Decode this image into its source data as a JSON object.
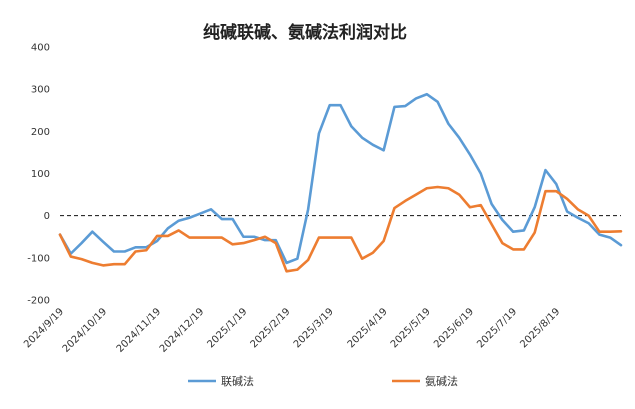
{
  "chart_data": {
    "type": "line",
    "title": "纯碱联碱、氨碱法利润对比",
    "xlabel": "",
    "ylabel": "",
    "ylim": [
      -200,
      400
    ],
    "yticks": [
      400,
      300,
      200,
      100,
      0,
      -100,
      -200
    ],
    "xticks": [
      "2024/9/19",
      "2024/10/19",
      "2024/11/19",
      "2024/12/19",
      "2025/1/19",
      "2025/2/19",
      "2025/3/19",
      "2025/4/19",
      "2025/5/19",
      "2025/6/19",
      "2025/7/19",
      "2025/8/19"
    ],
    "xtick_index": [
      0,
      4,
      9,
      13,
      17,
      21,
      25,
      30,
      34,
      38,
      42,
      46
    ],
    "zero_line": "dashed",
    "grid": false,
    "legend_position": "bottom",
    "series": [
      {
        "name": "联碱法",
        "color": "#5b9bd5",
        "values": [
          -45,
          -90,
          -65,
          -38,
          -62,
          -85,
          -85,
          -75,
          -75,
          -60,
          -30,
          -12,
          -5,
          5,
          15,
          -8,
          -8,
          -50,
          -50,
          -58,
          -58,
          -112,
          -102,
          15,
          195,
          262,
          262,
          212,
          185,
          168,
          155,
          258,
          260,
          278,
          288,
          270,
          218,
          185,
          145,
          100,
          28,
          -10,
          -38,
          -35,
          20,
          108,
          75,
          10,
          -5,
          -18,
          -45,
          -52,
          -70
        ]
      },
      {
        "name": "氨碱法",
        "color": "#ed7d31",
        "values": [
          -45,
          -97,
          -103,
          -112,
          -118,
          -115,
          -115,
          -85,
          -82,
          -48,
          -48,
          -35,
          -52,
          -52,
          -52,
          -52,
          -68,
          -65,
          -58,
          -50,
          -65,
          -132,
          -128,
          -105,
          -52,
          -52,
          -52,
          -52,
          -102,
          -88,
          -60,
          18,
          35,
          50,
          65,
          68,
          65,
          50,
          20,
          25,
          -20,
          -65,
          -80,
          -80,
          -40,
          58,
          58,
          40,
          15,
          0,
          -38,
          -38,
          -37
        ]
      }
    ]
  }
}
